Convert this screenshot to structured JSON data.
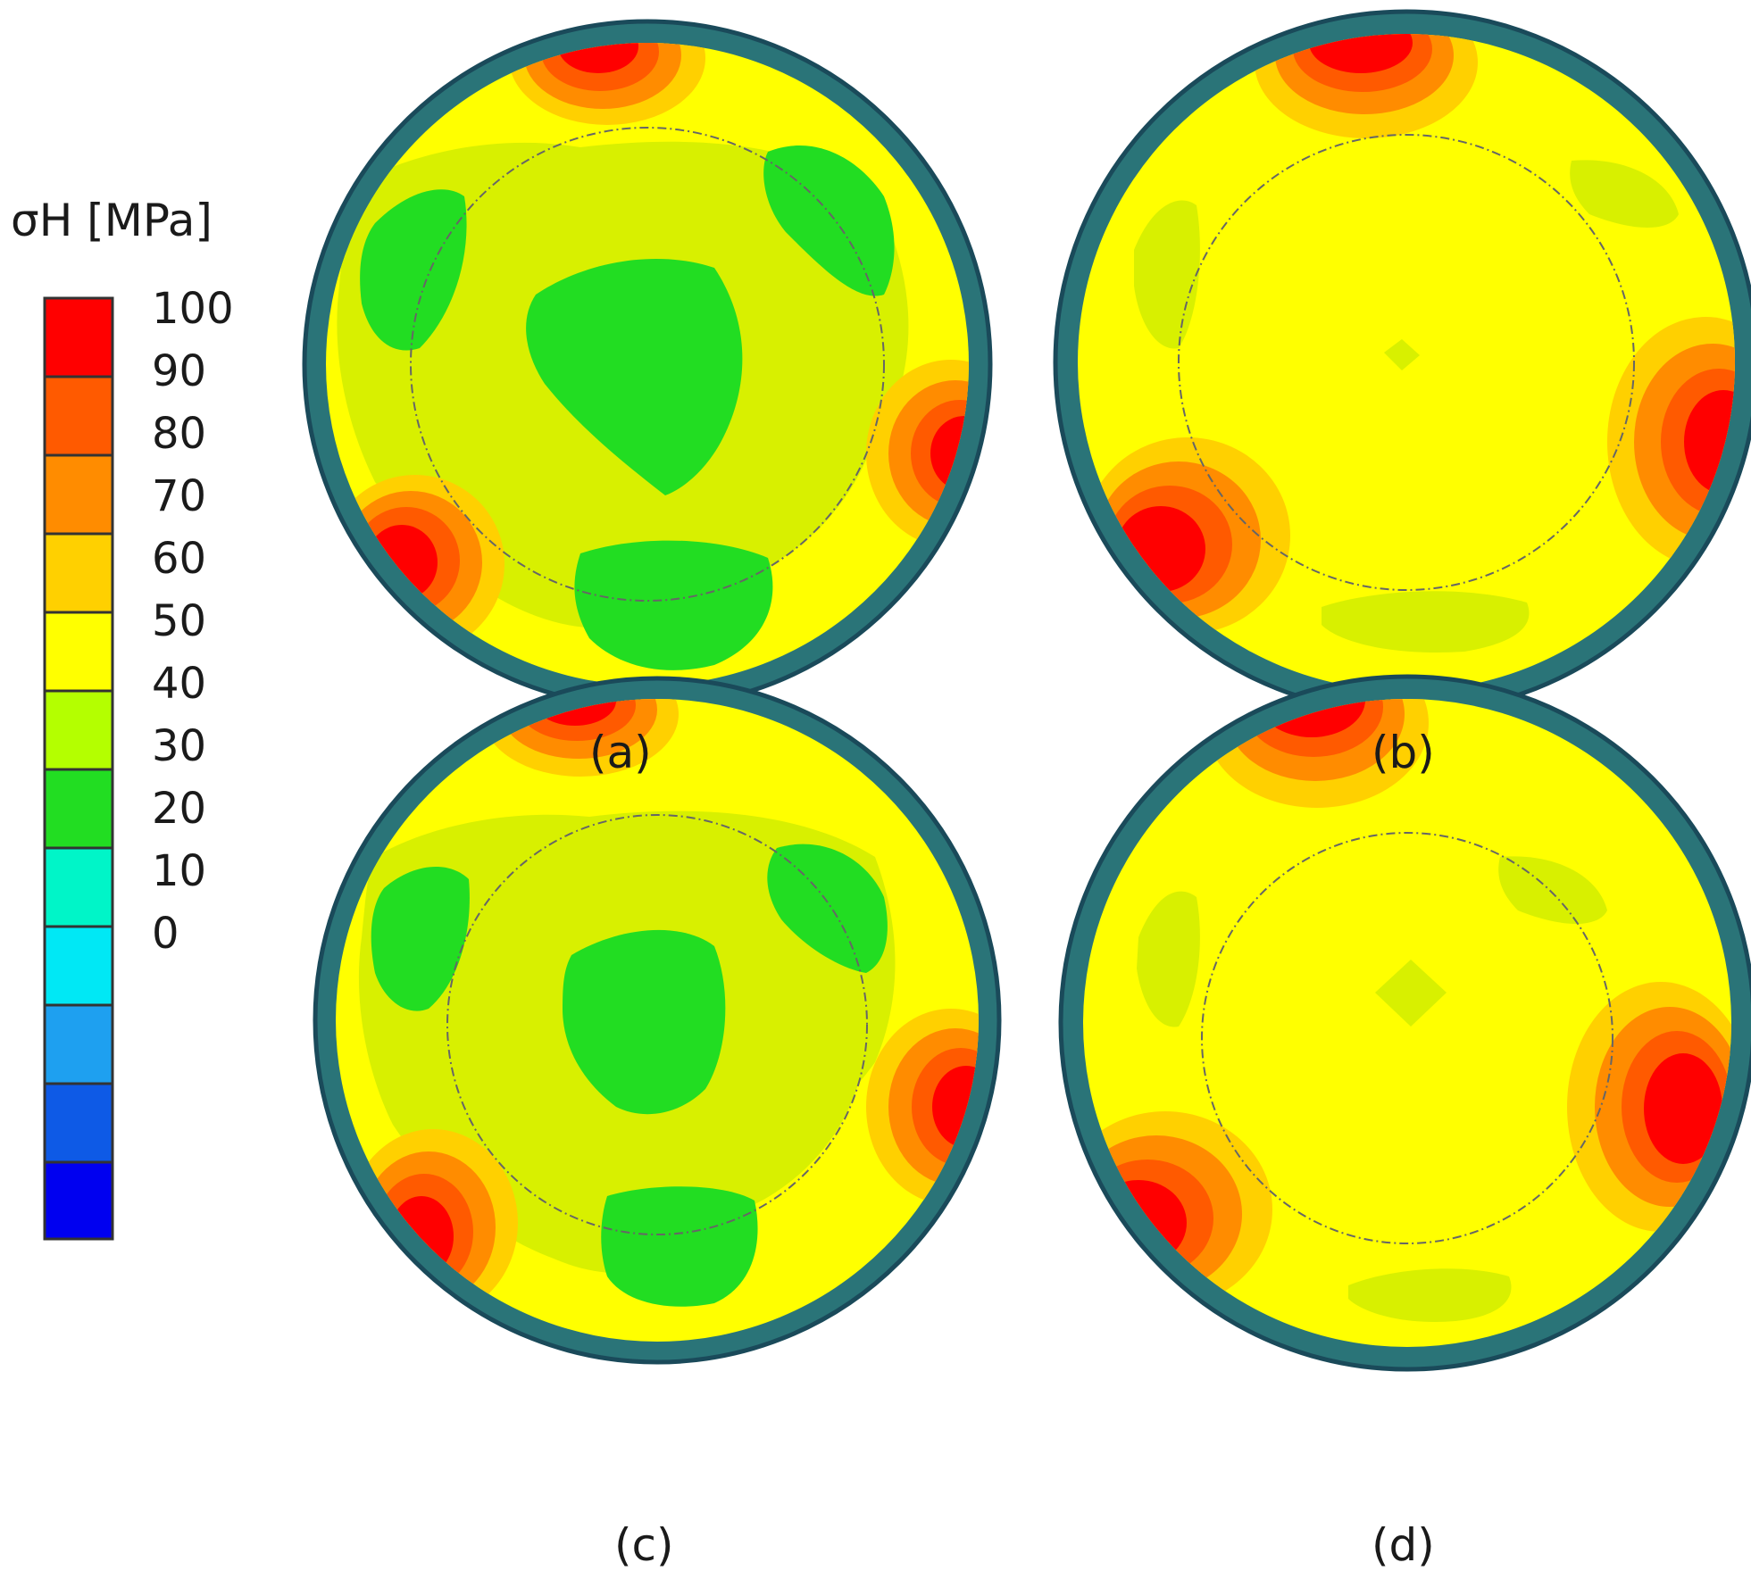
{
  "legend": {
    "title": "σH [MPa]",
    "ticks": [
      "100",
      "90",
      "80",
      "70",
      "60",
      "50",
      "40",
      "30",
      "20",
      "10",
      "0"
    ],
    "colors": [
      "#ff0000",
      "#ff5a00",
      "#ff8c00",
      "#ffd000",
      "#ffff00",
      "#b4ff00",
      "#22dd22",
      "#00f5c8",
      "#00e8f5",
      "#1ea0f0",
      "#0e5ae6",
      "#0000f0"
    ]
  },
  "panels": [
    {
      "label": "(a)"
    },
    {
      "label": "(b)"
    },
    {
      "label": "(c)"
    },
    {
      "label": "(d)"
    }
  ],
  "palette": {
    "ring": "#2a7478",
    "ring_edge": "#1a4a5a",
    "base": "#ffff00",
    "light_green": "#d8f000",
    "green": "#22dd22",
    "red": "#ff0000",
    "orange_dark": "#ff5a00",
    "orange": "#ff8c00",
    "gold": "#ffd000"
  }
}
